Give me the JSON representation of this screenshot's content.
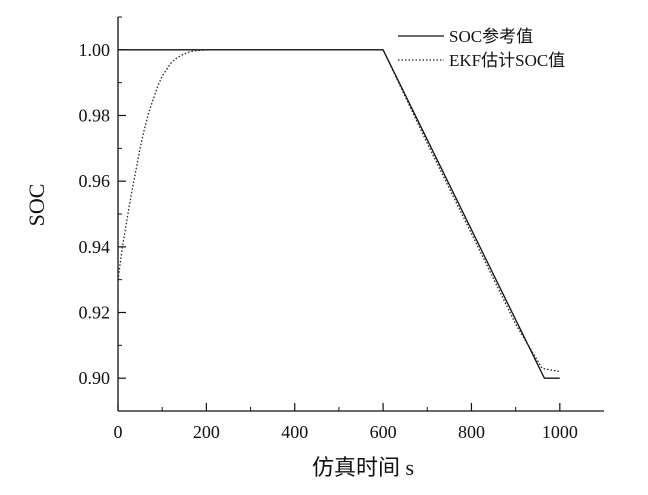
{
  "chart_data": {
    "type": "line",
    "title": "",
    "xlabel": "仿真时间  s",
    "ylabel": "SOC",
    "xlim": [
      0,
      1100
    ],
    "ylim": [
      0.89,
      1.01
    ],
    "xticks": [
      0,
      200,
      400,
      600,
      800,
      1000
    ],
    "xtick_labels": [
      "0",
      "200",
      "400",
      "600",
      "800",
      "1000"
    ],
    "yticks": [
      0.9,
      0.92,
      0.94,
      0.96,
      0.98,
      1.0
    ],
    "ytick_labels": [
      "0.90",
      "0.92",
      "0.94",
      "0.96",
      "0.98",
      "1.00"
    ],
    "grid": false,
    "legend_position": "top-right",
    "series": [
      {
        "name": "SOC参考值",
        "style": "solid",
        "color": "#111111",
        "x": [
          0,
          600,
          965,
          1000
        ],
        "y": [
          1.0,
          1.0,
          0.9,
          0.9
        ]
      },
      {
        "name": "EKF估计SOC值",
        "style": "dotted",
        "color": "#222222",
        "x": [
          0,
          10,
          20,
          30,
          40,
          50,
          60,
          70,
          80,
          90,
          100,
          110,
          120,
          130,
          140,
          150,
          160,
          170,
          180,
          190,
          200,
          220,
          240,
          260,
          280,
          300,
          400,
          500,
          600,
          700,
          800,
          900,
          960,
          980,
          1000
        ],
        "y": [
          0.93,
          0.94,
          0.948,
          0.956,
          0.963,
          0.97,
          0.976,
          0.981,
          0.985,
          0.989,
          0.992,
          0.994,
          0.996,
          0.9972,
          0.9981,
          0.9988,
          0.9993,
          0.9996,
          0.9998,
          0.9999,
          1.0,
          1.0,
          1.0,
          1.0,
          1.0,
          1.0,
          1.0,
          1.0,
          1.0,
          0.9715,
          0.944,
          0.9165,
          0.903,
          0.9025,
          0.902
        ]
      }
    ]
  }
}
